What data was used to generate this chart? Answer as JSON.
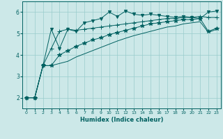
{
  "title": "",
  "xlabel": "Humidex (Indice chaleur)",
  "bg_color": "#cce8e8",
  "line_color": "#006060",
  "grid_color": "#99cccc",
  "xlim": [
    -0.5,
    23.5
  ],
  "ylim": [
    1.5,
    6.5
  ],
  "yticks": [
    2,
    3,
    4,
    5,
    6
  ],
  "xticks": [
    0,
    1,
    2,
    3,
    4,
    5,
    6,
    7,
    8,
    9,
    10,
    11,
    12,
    13,
    14,
    15,
    16,
    17,
    18,
    19,
    20,
    21,
    22,
    23
  ],
  "series": [
    [
      2.0,
      2.0,
      3.5,
      5.2,
      4.3,
      5.2,
      5.1,
      5.5,
      5.6,
      5.7,
      6.0,
      5.8,
      6.05,
      5.9,
      5.85,
      5.9,
      5.85,
      5.8,
      5.75,
      5.8,
      5.75,
      5.7,
      6.0,
      6.05
    ],
    [
      2.0,
      2.0,
      3.5,
      4.3,
      5.1,
      5.2,
      5.15,
      5.2,
      5.25,
      5.3,
      5.35,
      5.4,
      5.45,
      5.5,
      5.55,
      5.6,
      5.65,
      5.7,
      5.7,
      5.75,
      5.75,
      5.8,
      5.75,
      5.75
    ],
    [
      2.0,
      2.0,
      3.5,
      3.5,
      4.0,
      4.2,
      4.4,
      4.55,
      4.7,
      4.8,
      4.95,
      5.05,
      5.15,
      5.25,
      5.35,
      5.45,
      5.5,
      5.55,
      5.6,
      5.65,
      5.65,
      5.7,
      5.1,
      5.25
    ],
    [
      2.0,
      2.0,
      3.5,
      3.5,
      3.6,
      3.7,
      3.9,
      4.05,
      4.2,
      4.35,
      4.5,
      4.65,
      4.78,
      4.9,
      5.0,
      5.1,
      5.2,
      5.3,
      5.35,
      5.45,
      5.5,
      5.55,
      5.05,
      5.2
    ]
  ],
  "markers": [
    "v",
    "+",
    "*",
    null
  ],
  "marker_sizes": [
    3,
    4,
    4,
    3
  ],
  "linewidths": [
    0.7,
    0.7,
    0.7,
    0.7
  ]
}
